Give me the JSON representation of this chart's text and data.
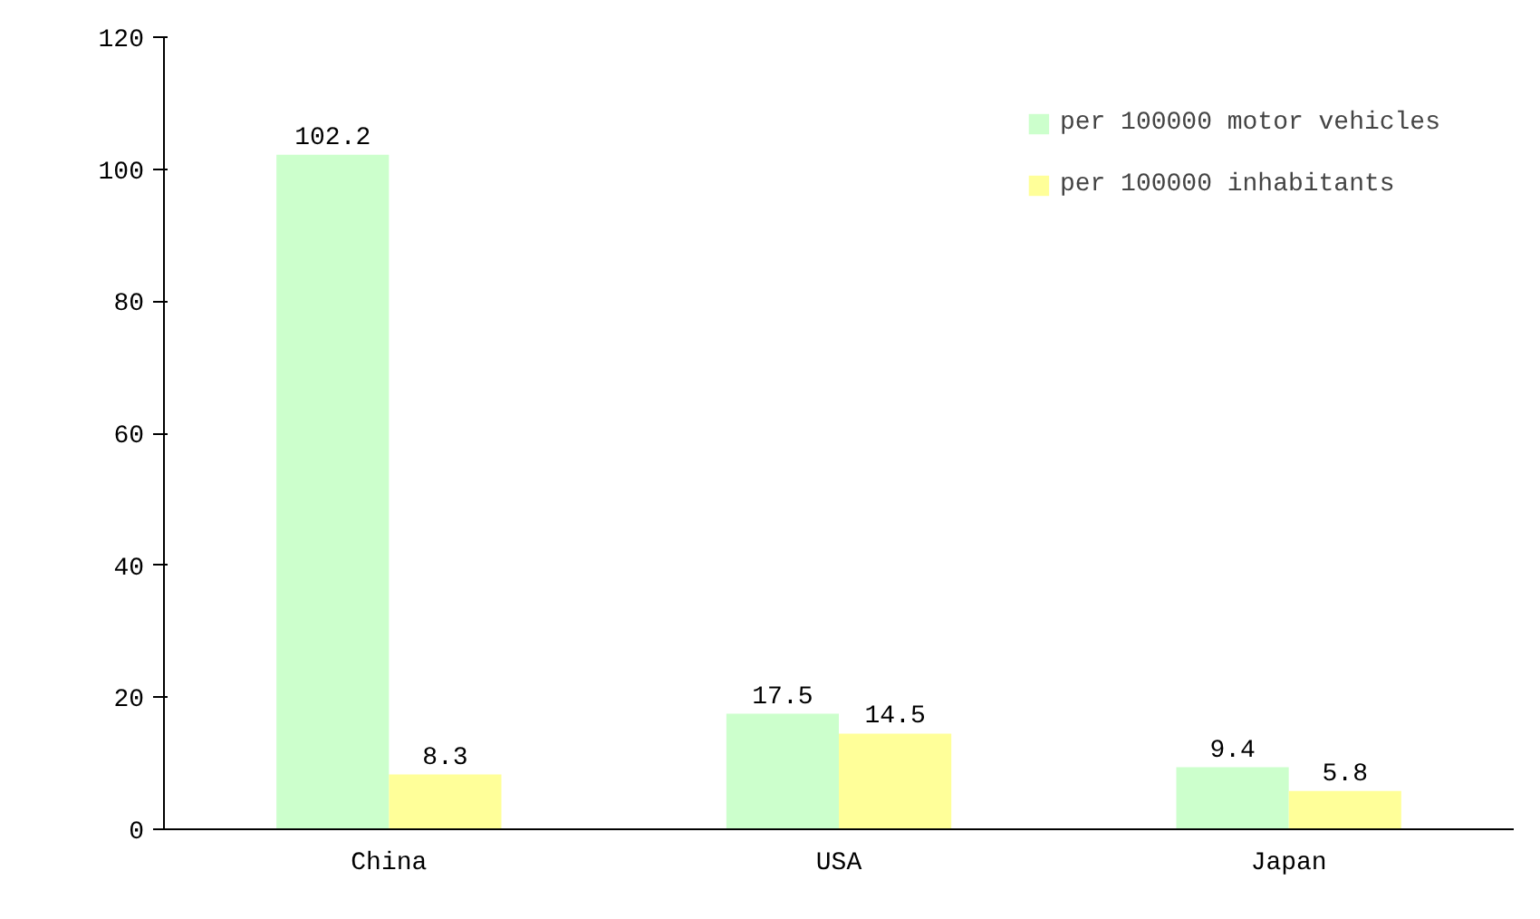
{
  "chart_data": {
    "type": "bar",
    "categories": [
      "China",
      "USA",
      "Japan"
    ],
    "series": [
      {
        "name": "per 100000 motor vehicles",
        "color": "#ccffcc",
        "values": [
          102.2,
          17.5,
          9.4
        ]
      },
      {
        "name": "per 100000 inhabitants",
        "color": "#ffff99",
        "values": [
          8.3,
          14.5,
          5.8
        ]
      }
    ],
    "ylim": [
      0,
      120
    ],
    "yticks": [
      0,
      20,
      40,
      60,
      80,
      100,
      120
    ],
    "data_labels": true,
    "grid": false,
    "legend": "top right"
  }
}
